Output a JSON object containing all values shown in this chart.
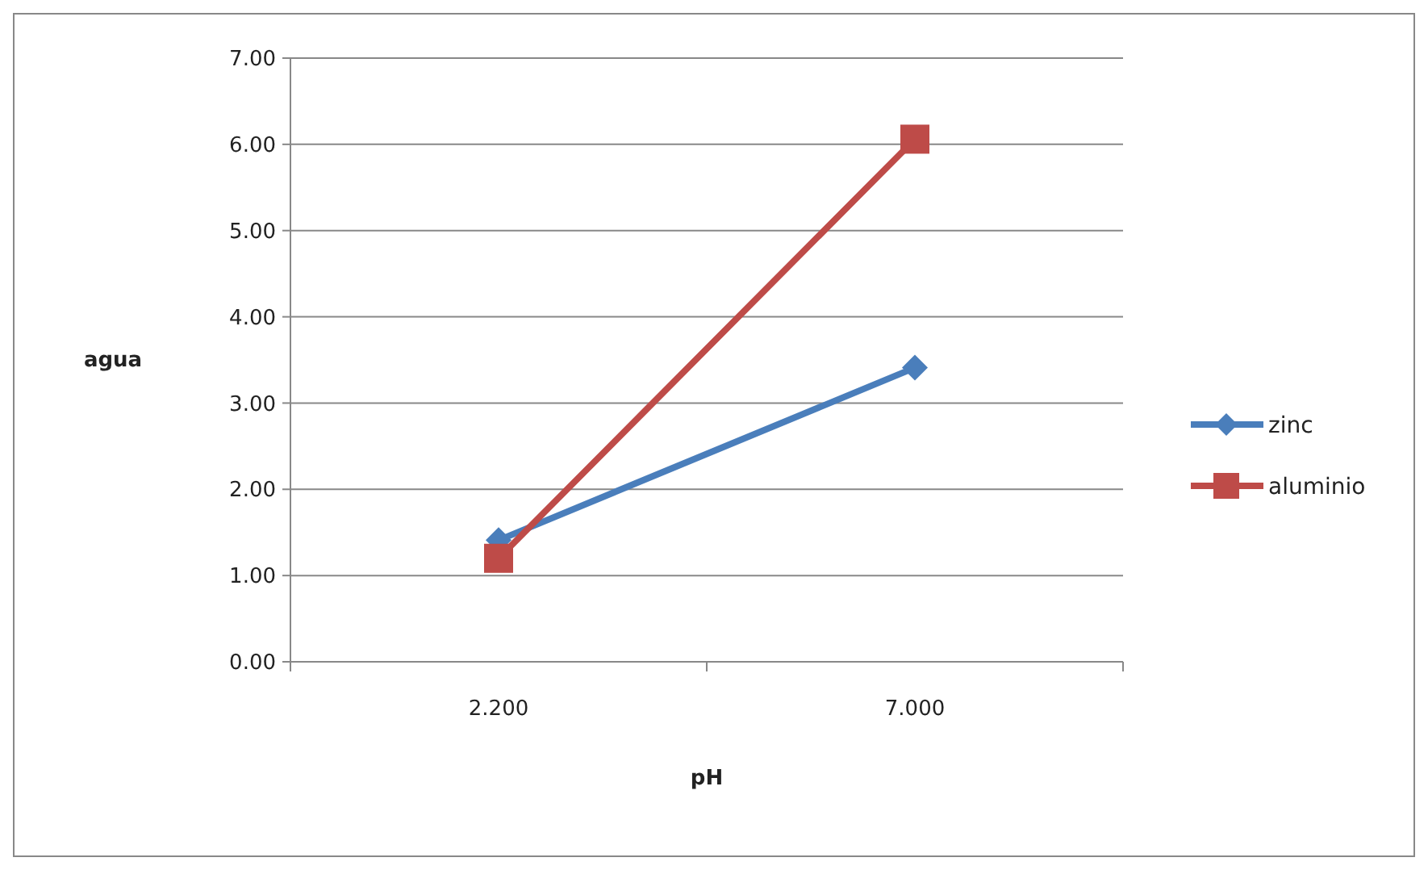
{
  "chart_data": {
    "type": "line",
    "xlabel": "pH",
    "ylabel": "agua",
    "categories": [
      "2.200",
      "7.000"
    ],
    "series": [
      {
        "name": "zinc",
        "color": "#4a7ebb",
        "values": [
          1.41,
          3.41
        ],
        "marker": "diamond"
      },
      {
        "name": "aluminio",
        "color": "#be4b48",
        "values": [
          1.2,
          6.06
        ],
        "marker": "square"
      }
    ],
    "ylim": [
      0,
      7
    ],
    "yticks": [
      {
        "value": 0,
        "label": "0.00"
      },
      {
        "value": 1,
        "label": "1.00"
      },
      {
        "value": 2,
        "label": "2.00"
      },
      {
        "value": 3,
        "label": "3.00"
      },
      {
        "value": 4,
        "label": "4.00"
      },
      {
        "value": 5,
        "label": "5.00"
      },
      {
        "value": 6,
        "label": "6.00"
      },
      {
        "value": 7,
        "label": "7.00"
      }
    ],
    "grid": "y",
    "legend": "right",
    "line_style": "solid"
  }
}
